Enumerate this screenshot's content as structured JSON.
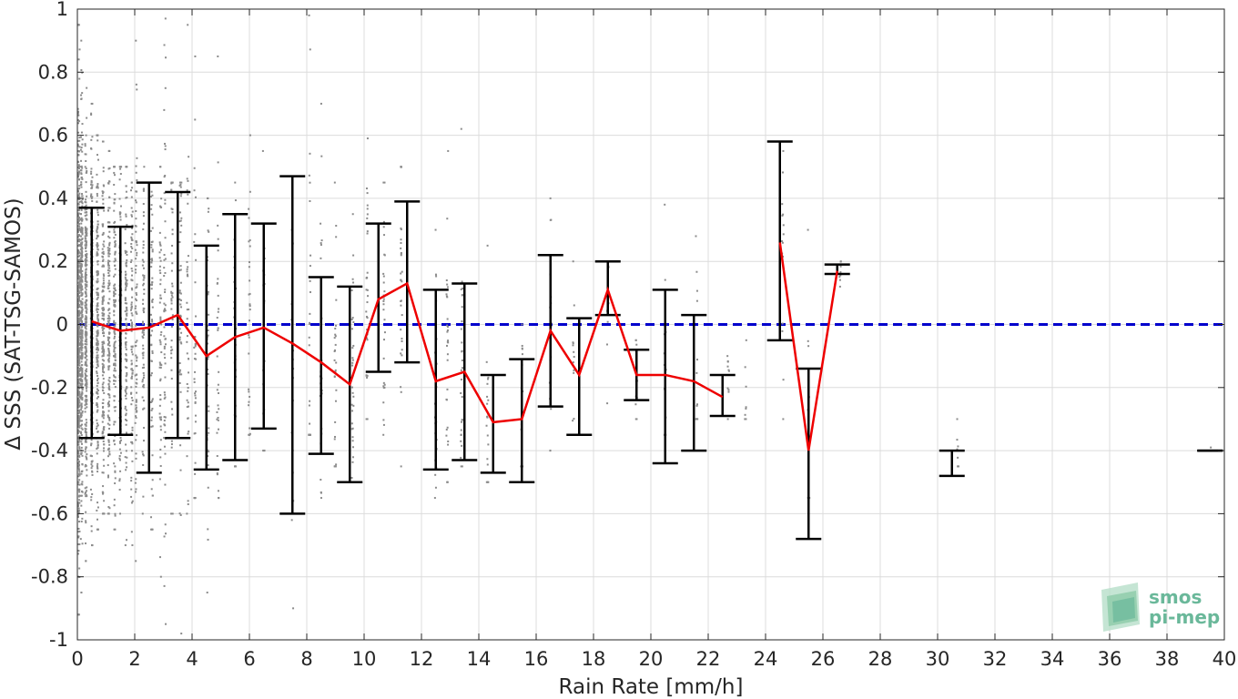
{
  "chart_data": {
    "type": "scatter",
    "title": "",
    "xlabel": "Rain Rate [mm/h]",
    "ylabel": "Δ SSS (SAT-TSG-SAMOS)",
    "xlim": [
      0,
      40
    ],
    "ylim": [
      -1,
      1
    ],
    "xticks": [
      0,
      2,
      4,
      6,
      8,
      10,
      12,
      14,
      16,
      18,
      20,
      22,
      24,
      26,
      28,
      30,
      32,
      34,
      36,
      38,
      40
    ],
    "yticks": [
      -1,
      -0.8,
      -0.6,
      -0.4,
      -0.2,
      0,
      0.2,
      0.4,
      0.6,
      0.8,
      1
    ],
    "xtick_labels": [
      "0",
      "2",
      "4",
      "6",
      "8",
      "10",
      "12",
      "14",
      "16",
      "18",
      "20",
      "22",
      "24",
      "26",
      "28",
      "30",
      "32",
      "34",
      "36",
      "38",
      "40"
    ],
    "ytick_labels": [
      "-1",
      "-0.8",
      "-0.6",
      "-0.4",
      "-0.2",
      "0",
      "0.2",
      "0.4",
      "0.6",
      "0.8",
      "1"
    ],
    "grid": true,
    "zero_line": {
      "y": 0,
      "color": "#0000cc",
      "style": "dashed"
    },
    "scatter_color": "#8c8c8c",
    "scatter_columns": [
      {
        "x": 0.05,
        "ymin": -0.92,
        "ymax": 0.95,
        "mean": 0.0,
        "sd": 0.33,
        "n": 500
      },
      {
        "x": 0.15,
        "ymin": -0.85,
        "ymax": 0.9,
        "mean": 0.0,
        "sd": 0.3,
        "n": 350
      },
      {
        "x": 0.3,
        "ymin": -0.75,
        "ymax": 0.75,
        "mean": 0.0,
        "sd": 0.28,
        "n": 300
      },
      {
        "x": 0.5,
        "ymin": -0.7,
        "ymax": 0.7,
        "mean": 0.0,
        "sd": 0.27,
        "n": 260
      },
      {
        "x": 0.7,
        "ymin": -0.65,
        "ymax": 0.6,
        "mean": 0.0,
        "sd": 0.26,
        "n": 200
      },
      {
        "x": 0.9,
        "ymin": -0.6,
        "ymax": 0.58,
        "mean": 0.0,
        "sd": 0.25,
        "n": 180
      },
      {
        "x": 1.1,
        "ymin": -0.6,
        "ymax": 0.55,
        "mean": -0.02,
        "sd": 0.25,
        "n": 160
      },
      {
        "x": 1.3,
        "ymin": -0.65,
        "ymax": 0.5,
        "mean": -0.02,
        "sd": 0.25,
        "n": 140
      },
      {
        "x": 1.5,
        "ymin": -0.6,
        "ymax": 0.5,
        "mean": -0.02,
        "sd": 0.25,
        "n": 130
      },
      {
        "x": 1.7,
        "ymin": -0.7,
        "ymax": 0.5,
        "mean": -0.02,
        "sd": 0.25,
        "n": 110
      },
      {
        "x": 1.9,
        "ymin": -0.7,
        "ymax": 0.45,
        "mean": -0.02,
        "sd": 0.25,
        "n": 90
      },
      {
        "x": 2.05,
        "ymin": -0.75,
        "ymax": 0.9,
        "mean": -0.01,
        "sd": 0.3,
        "n": 80
      },
      {
        "x": 2.3,
        "ymin": -0.6,
        "ymax": 0.5,
        "mean": -0.01,
        "sd": 0.28,
        "n": 70
      },
      {
        "x": 2.6,
        "ymin": -0.65,
        "ymax": 0.45,
        "mean": -0.01,
        "sd": 0.3,
        "n": 70
      },
      {
        "x": 2.9,
        "ymin": -0.8,
        "ymax": 0.5,
        "mean": -0.01,
        "sd": 0.3,
        "n": 60
      },
      {
        "x": 3.05,
        "ymin": -0.95,
        "ymax": 0.97,
        "mean": 0.03,
        "sd": 0.35,
        "n": 60
      },
      {
        "x": 3.3,
        "ymin": -0.6,
        "ymax": 0.45,
        "mean": 0.03,
        "sd": 0.3,
        "n": 50
      },
      {
        "x": 3.6,
        "ymin": -0.98,
        "ymax": 0.45,
        "mean": 0.03,
        "sd": 0.3,
        "n": 50
      },
      {
        "x": 3.85,
        "ymin": -0.6,
        "ymax": 0.95,
        "mean": 0.03,
        "sd": 0.3,
        "n": 40
      },
      {
        "x": 4.1,
        "ymin": -0.55,
        "ymax": 0.85,
        "mean": -0.1,
        "sd": 0.3,
        "n": 40
      },
      {
        "x": 4.55,
        "ymin": -0.85,
        "ymax": 0.4,
        "mean": -0.1,
        "sd": 0.3,
        "n": 40
      },
      {
        "x": 4.9,
        "ymin": -0.55,
        "ymax": 0.85,
        "mean": -0.1,
        "sd": 0.3,
        "n": 35
      },
      {
        "x": 5.5,
        "ymin": -0.45,
        "ymax": 0.45,
        "mean": -0.04,
        "sd": 0.25,
        "n": 35
      },
      {
        "x": 6.0,
        "ymin": -0.35,
        "ymax": 0.6,
        "mean": -0.01,
        "sd": 0.22,
        "n": 30
      },
      {
        "x": 6.5,
        "ymin": -0.4,
        "ymax": 0.55,
        "mean": -0.01,
        "sd": 0.22,
        "n": 30
      },
      {
        "x": 7.5,
        "ymin": -0.9,
        "ymax": 0.3,
        "mean": -0.06,
        "sd": 0.25,
        "n": 25
      },
      {
        "x": 8.1,
        "ymin": -0.35,
        "ymax": 0.98,
        "mean": -0.12,
        "sd": 0.3,
        "n": 30
      },
      {
        "x": 8.5,
        "ymin": -0.55,
        "ymax": 0.7,
        "mean": -0.12,
        "sd": 0.3,
        "n": 30
      },
      {
        "x": 9.0,
        "ymin": -0.45,
        "ymax": 0.45,
        "mean": -0.15,
        "sd": 0.25,
        "n": 30
      },
      {
        "x": 9.6,
        "ymin": -0.5,
        "ymax": 0.35,
        "mean": -0.19,
        "sd": 0.2,
        "n": 35
      },
      {
        "x": 10.1,
        "ymin": -0.3,
        "ymax": 0.59,
        "mean": 0.08,
        "sd": 0.2,
        "n": 30
      },
      {
        "x": 10.7,
        "ymin": -0.35,
        "ymax": 0.45,
        "mean": 0.08,
        "sd": 0.2,
        "n": 30
      },
      {
        "x": 11.3,
        "ymin": -0.45,
        "ymax": 0.5,
        "mean": 0.13,
        "sd": 0.2,
        "n": 30
      },
      {
        "x": 12.5,
        "ymin": -0.55,
        "ymax": 0.3,
        "mean": -0.18,
        "sd": 0.2,
        "n": 30
      },
      {
        "x": 12.9,
        "ymin": -0.5,
        "ymax": 0.55,
        "mean": -0.15,
        "sd": 0.2,
        "n": 30
      },
      {
        "x": 13.4,
        "ymin": -0.45,
        "ymax": 0.62,
        "mean": -0.15,
        "sd": 0.2,
        "n": 30
      },
      {
        "x": 14.3,
        "ymin": -0.5,
        "ymax": 0.25,
        "mean": -0.31,
        "sd": 0.15,
        "n": 20
      },
      {
        "x": 15.5,
        "ymin": -0.45,
        "ymax": 0.0,
        "mean": -0.3,
        "sd": 0.15,
        "n": 15
      },
      {
        "x": 16.5,
        "ymin": -0.4,
        "ymax": 0.4,
        "mean": -0.02,
        "sd": 0.2,
        "n": 25
      },
      {
        "x": 17.3,
        "ymin": -0.35,
        "ymax": 0.2,
        "mean": -0.16,
        "sd": 0.15,
        "n": 15
      },
      {
        "x": 18.5,
        "ymin": -0.25,
        "ymax": 0.2,
        "mean": 0.1,
        "sd": 0.1,
        "n": 15
      },
      {
        "x": 19.5,
        "ymin": -0.3,
        "ymax": -0.05,
        "mean": -0.16,
        "sd": 0.08,
        "n": 12
      },
      {
        "x": 20.5,
        "ymin": -0.35,
        "ymax": 0.38,
        "mean": -0.16,
        "sd": 0.2,
        "n": 20
      },
      {
        "x": 21.6,
        "ymin": -0.3,
        "ymax": 0.28,
        "mean": -0.18,
        "sd": 0.18,
        "n": 15
      },
      {
        "x": 22.7,
        "ymin": -0.3,
        "ymax": -0.1,
        "mean": -0.2,
        "sd": 0.06,
        "n": 10
      },
      {
        "x": 23.3,
        "ymin": -0.3,
        "ymax": -0.05,
        "mean": -0.2,
        "sd": 0.06,
        "n": 8
      },
      {
        "x": 24.6,
        "ymin": -0.3,
        "ymax": 0.55,
        "mean": 0.26,
        "sd": 0.2,
        "n": 15
      },
      {
        "x": 25.5,
        "ymin": -0.55,
        "ymax": 0.3,
        "mean": -0.4,
        "sd": 0.15,
        "n": 15
      },
      {
        "x": 26.6,
        "ymin": 0.12,
        "ymax": 0.2,
        "mean": 0.17,
        "sd": 0.02,
        "n": 8
      },
      {
        "x": 30.7,
        "ymin": -0.45,
        "ymax": -0.3,
        "mean": -0.42,
        "sd": 0.04,
        "n": 8
      },
      {
        "x": 39.5,
        "ymin": -0.4,
        "ymax": -0.39,
        "mean": -0.4,
        "sd": 0.01,
        "n": 3
      }
    ],
    "mean_line": {
      "color": "#ee0000",
      "x": [
        0.5,
        1.5,
        2.5,
        3.5,
        4.5,
        5.5,
        6.5,
        7.5,
        8.5,
        9.5,
        10.5,
        11.5,
        12.5,
        13.5,
        14.5,
        15.5,
        16.5,
        17.5,
        18.5,
        19.5,
        20.5,
        21.5,
        22.5
      ],
      "y": [
        0.01,
        -0.02,
        -0.01,
        0.03,
        -0.1,
        -0.04,
        -0.01,
        -0.06,
        -0.12,
        -0.19,
        0.08,
        0.13,
        -0.18,
        -0.15,
        -0.31,
        -0.3,
        -0.02,
        -0.16,
        0.11,
        -0.16,
        -0.16,
        -0.18,
        -0.23
      ]
    },
    "mean_line_2": {
      "color": "#ee0000",
      "x": [
        24.5,
        25.5,
        26.5
      ],
      "y": [
        0.26,
        -0.4,
        0.17
      ]
    },
    "error_bars": [
      {
        "x": 0.5,
        "low": -0.36,
        "high": 0.37
      },
      {
        "x": 1.5,
        "low": -0.35,
        "high": 0.31
      },
      {
        "x": 2.5,
        "low": -0.47,
        "high": 0.45
      },
      {
        "x": 3.5,
        "low": -0.36,
        "high": 0.42
      },
      {
        "x": 4.5,
        "low": -0.46,
        "high": 0.25
      },
      {
        "x": 5.5,
        "low": -0.43,
        "high": 0.35
      },
      {
        "x": 6.5,
        "low": -0.33,
        "high": 0.32
      },
      {
        "x": 7.5,
        "low": -0.6,
        "high": 0.47
      },
      {
        "x": 8.5,
        "low": -0.41,
        "high": 0.15
      },
      {
        "x": 9.5,
        "low": -0.5,
        "high": 0.12
      },
      {
        "x": 10.5,
        "low": -0.15,
        "high": 0.32
      },
      {
        "x": 11.5,
        "low": -0.12,
        "high": 0.39
      },
      {
        "x": 12.5,
        "low": -0.46,
        "high": 0.11
      },
      {
        "x": 13.5,
        "low": -0.43,
        "high": 0.13
      },
      {
        "x": 14.5,
        "low": -0.47,
        "high": -0.16
      },
      {
        "x": 15.5,
        "low": -0.5,
        "high": -0.11
      },
      {
        "x": 16.5,
        "low": -0.26,
        "high": 0.22
      },
      {
        "x": 17.5,
        "low": -0.35,
        "high": 0.02
      },
      {
        "x": 18.5,
        "low": 0.03,
        "high": 0.2
      },
      {
        "x": 19.5,
        "low": -0.24,
        "high": -0.08
      },
      {
        "x": 20.5,
        "low": -0.44,
        "high": 0.11
      },
      {
        "x": 21.5,
        "low": -0.4,
        "high": 0.03
      },
      {
        "x": 22.5,
        "low": -0.29,
        "high": -0.16
      },
      {
        "x": 24.5,
        "low": -0.05,
        "high": 0.58
      },
      {
        "x": 25.5,
        "low": -0.68,
        "high": -0.14
      },
      {
        "x": 26.5,
        "low": 0.16,
        "high": 0.19
      },
      {
        "x": 30.5,
        "low": -0.48,
        "high": -0.4
      },
      {
        "x": 39.5,
        "low": -0.4,
        "high": -0.4
      }
    ]
  },
  "logo": {
    "line1": "smos",
    "line2": "pi-mep"
  }
}
